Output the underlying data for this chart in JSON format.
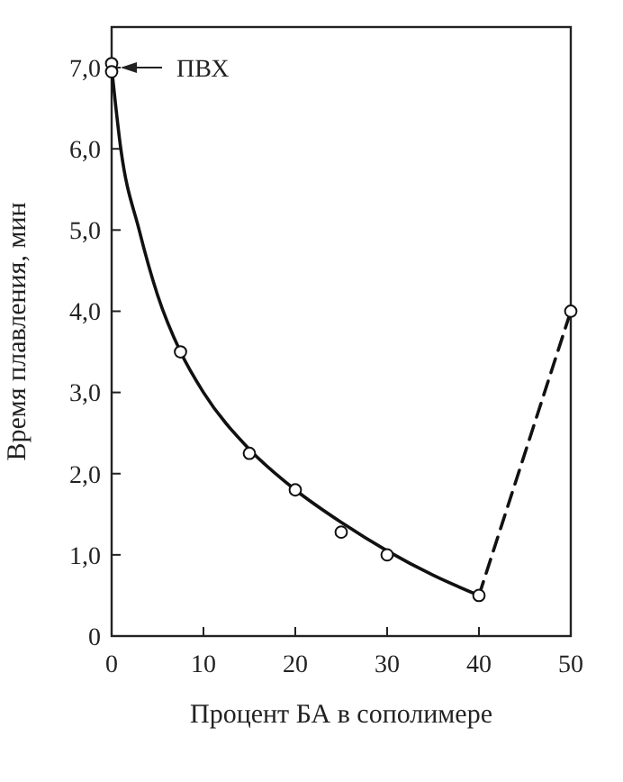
{
  "chart_data": {
    "type": "scatter",
    "xlabel": "Процент БА в сополимере",
    "ylabel": "Время плавления, мин",
    "xlim": [
      0,
      50
    ],
    "xticks": [
      0,
      10,
      20,
      30,
      40,
      50
    ],
    "ylim": [
      0,
      7.5
    ],
    "yticks": [
      0,
      {
        "value": 1,
        "label": "1,0"
      },
      {
        "value": 2,
        "label": "2,0"
      },
      {
        "value": 3,
        "label": "3,0"
      },
      {
        "value": 4,
        "label": "4,0"
      },
      {
        "value": 5,
        "label": "5,0"
      },
      {
        "value": 6,
        "label": "6,0"
      },
      {
        "value": 7,
        "label": "7,0"
      }
    ],
    "grid": false,
    "annotations": [
      {
        "text": "ПВХ",
        "x": 0,
        "y": 7.0
      }
    ],
    "series": [
      {
        "type": "line",
        "color": "#111111",
        "line_style": "solid",
        "marker": "none",
        "x": [
          0,
          1,
          3,
          5,
          7.5,
          10,
          15,
          20,
          25,
          30,
          35,
          40
        ],
        "values": [
          7.0,
          6.0,
          5.0,
          4.2,
          3.5,
          3.0,
          2.3,
          1.8,
          1.4,
          1.05,
          0.75,
          0.5
        ]
      },
      {
        "type": "line",
        "color": "#111111",
        "line_style": "dashed",
        "marker": "none",
        "x": [
          40,
          50
        ],
        "values": [
          0.5,
          4.0
        ]
      },
      {
        "type": "scatter",
        "color": "#111111",
        "marker": "circle",
        "x": [
          0,
          0,
          7.5,
          15,
          20,
          25,
          30,
          40,
          50
        ],
        "values": [
          7.05,
          6.95,
          3.5,
          2.25,
          1.8,
          1.28,
          1.0,
          0.5,
          4.0
        ]
      }
    ]
  }
}
